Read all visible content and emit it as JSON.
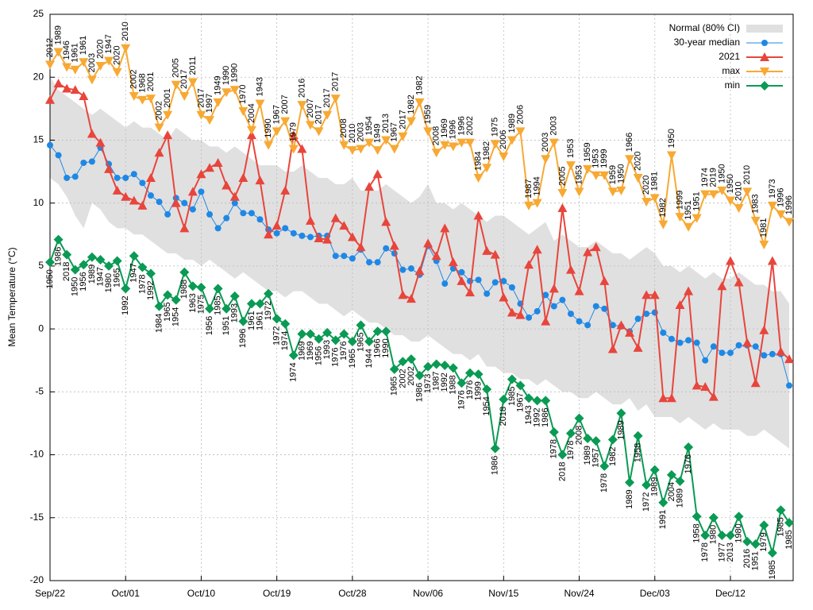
{
  "chart_data": {
    "type": "line",
    "ylabel": "Mean Temperature (°C)",
    "categories": [
      "Sep/22",
      null,
      null,
      null,
      null,
      null,
      null,
      null,
      null,
      "Oct/01",
      null,
      null,
      null,
      null,
      null,
      null,
      null,
      null,
      "Oct/10",
      null,
      null,
      null,
      null,
      null,
      null,
      null,
      null,
      "Oct/19",
      null,
      null,
      null,
      null,
      null,
      null,
      null,
      null,
      "Oct/28",
      null,
      null,
      null,
      null,
      null,
      null,
      null,
      null,
      "Nov/06",
      null,
      null,
      null,
      null,
      null,
      null,
      null,
      null,
      "Nov/15",
      null,
      null,
      null,
      null,
      null,
      null,
      null,
      null,
      "Nov/24",
      null,
      null,
      null,
      null,
      null,
      null,
      null,
      null,
      "Dec/03",
      null,
      null,
      null,
      null,
      null,
      null,
      null,
      null,
      "Dec/12",
      null,
      null,
      null,
      null,
      null,
      null,
      null
    ],
    "ylim": [
      -20,
      25
    ],
    "yticks": [
      -20,
      -15,
      -10,
      -5,
      0,
      5,
      10,
      15,
      20,
      25
    ],
    "grid": true,
    "legend": "upper right",
    "series": [
      {
        "name": "Normal (80% CI)",
        "color": "#e0e0e0",
        "kind": "band",
        "upper": [
          20,
          19,
          18.5,
          18,
          17.5,
          17,
          17.5,
          17,
          16.5,
          16,
          16.5,
          16,
          16,
          15.5,
          15,
          16,
          15.5,
          15,
          15,
          14.5,
          14.5,
          14,
          14.5,
          14,
          13.5,
          13,
          13,
          13,
          12.5,
          12.5,
          13,
          12.5,
          12,
          12,
          11.5,
          11.5,
          12,
          11,
          11,
          11,
          11.5,
          11,
          10.5,
          10,
          10.5,
          11.5,
          10,
          10,
          9.5,
          10,
          9.5,
          9,
          8.5,
          9,
          9,
          8.5,
          8,
          7.5,
          8,
          8.5,
          7,
          7.5,
          7,
          6.5,
          6.5,
          7,
          6.5,
          6,
          6,
          5.5,
          6,
          6.5,
          6,
          5,
          5,
          4.5,
          5,
          4.5,
          4,
          4.5,
          4,
          4,
          4.5,
          4,
          3.5,
          3.5,
          3,
          3,
          2
        ],
        "lower": [
          12,
          11.5,
          10.5,
          9,
          8,
          10,
          9.5,
          8.5,
          8,
          8,
          7.5,
          7.5,
          7,
          6.5,
          6,
          6,
          5.5,
          5.5,
          5,
          5.5,
          5,
          4.5,
          4,
          4.5,
          4,
          3.5,
          3,
          3,
          2.5,
          3,
          3,
          2.5,
          2,
          2,
          1.5,
          1,
          1.5,
          1,
          0.5,
          0.5,
          0,
          -0.5,
          -0.5,
          -1,
          -1,
          -0.5,
          -1,
          -1.5,
          -2,
          -2,
          -2.5,
          -2,
          -3,
          -3,
          -3.5,
          -3.5,
          -4,
          -4,
          -4.5,
          -4,
          -4.5,
          -5,
          -5,
          -5.5,
          -5.5,
          -5,
          -5.5,
          -6,
          -6,
          -5.5,
          -6.5,
          -6,
          -7,
          -7,
          -7,
          -7.5,
          -7,
          -7.5,
          -8,
          -7.5,
          -8,
          -8,
          -8,
          -8.5,
          -8.5,
          -8,
          -8.5,
          -9,
          -9.5
        ]
      },
      {
        "name": "30-year median",
        "color": "#1e88e5",
        "marker": "circle",
        "width": 1,
        "values": [
          14.6,
          13.8,
          12.0,
          12.1,
          13.2,
          13.3,
          14.4,
          13.1,
          12.0,
          12.0,
          12.3,
          11.6,
          10.6,
          10.1,
          9.1,
          10.4,
          10.0,
          9.5,
          10.9,
          9.1,
          8.0,
          8.8,
          10.0,
          9.2,
          9.2,
          8.7,
          7.9,
          7.6,
          8.0,
          7.6,
          7.4,
          7.3,
          7.4,
          7.4,
          5.8,
          5.8,
          5.6,
          6.3,
          5.3,
          5.3,
          6.4,
          6.0,
          4.7,
          4.8,
          4.3,
          6.6,
          5.4,
          3.6,
          4.8,
          4.5,
          3.8,
          3.9,
          2.8,
          3.7,
          3.8,
          3.3,
          2.0,
          0.9,
          1.4,
          2.7,
          1.8,
          2.3,
          1.2,
          0.6,
          0.3,
          1.8,
          1.6,
          0.3,
          0.2,
          -0.2,
          0.8,
          1.2,
          1.3,
          -0.3,
          -0.8,
          -1.1,
          -0.9,
          -1.1,
          -2.5,
          -1.4,
          -1.9,
          -1.9,
          -1.3,
          -1.3,
          -1.4,
          -2.1,
          -2.0,
          -2.0,
          -4.5
        ]
      },
      {
        "name": "2021",
        "color": "#e8453c",
        "marker": "triangle-up",
        "width": 2,
        "values": [
          18.2,
          19.5,
          19.1,
          19.0,
          18.5,
          15.5,
          14.8,
          12.7,
          11.0,
          10.5,
          10.2,
          9.8,
          12.0,
          14.0,
          15.4,
          10.0,
          8.0,
          10.9,
          12.3,
          12.8,
          13.2,
          11.4,
          10.5,
          12.0,
          15.4,
          11.8,
          7.5,
          8.2,
          11.0,
          15.4,
          14.3,
          8.6,
          7.2,
          7.1,
          8.8,
          8.2,
          7.3,
          6.5,
          11.3,
          12.3,
          8.5,
          6.6,
          2.7,
          2.4,
          4.6,
          6.8,
          5.8,
          8.0,
          5.3,
          3.8,
          2.9,
          9.0,
          6.2,
          5.9,
          2.5,
          1.3,
          1.1,
          5.1,
          6.3,
          0.6,
          3.2,
          9.6,
          4.7,
          3.0,
          6.1,
          6.5,
          3.8,
          -1.6,
          0.3,
          -0.3,
          -1.5,
          2.7,
          2.7,
          -5.5,
          -5.5,
          1.9,
          3.0,
          -4.5,
          -4.6,
          -5.4,
          3.4,
          5.4,
          3.7,
          -1.1,
          -4.3,
          -0.1,
          5.4,
          -1.8,
          -2.4
        ]
      },
      {
        "name": "max",
        "color": "#f7a933",
        "marker": "triangle-down",
        "width": 2,
        "label_side": "above",
        "values": [
          21.0,
          22.0,
          20.8,
          20.6,
          21.2,
          19.8,
          20.9,
          21.3,
          20.4,
          22.3,
          18.5,
          18.2,
          18.3,
          16.0,
          17.0,
          19.4,
          18.5,
          19.6,
          17.0,
          16.6,
          18.0,
          18.8,
          19.0,
          17.3,
          15.8,
          17.9,
          14.6,
          15.7,
          16.5,
          14.3,
          17.8,
          16.2,
          15.7,
          17.0,
          18.3,
          14.6,
          14.2,
          14.3,
          14.8,
          14.2,
          15.0,
          14.3,
          15.3,
          16.5,
          18.0,
          15.7,
          14.0,
          14.6,
          14.5,
          14.8,
          14.8,
          12.0,
          12.8,
          14.7,
          13.7,
          15.0,
          15.7,
          9.8,
          10.0,
          13.5,
          14.8,
          10.8,
          13.0,
          10.9,
          12.7,
          12.2,
          12.2,
          10.9,
          11.0,
          13.5,
          12.0,
          10.1,
          10.4,
          8.3,
          13.8,
          8.9,
          8.1,
          8.8,
          10.7,
          10.7,
          11.0,
          10.2,
          9.6,
          10.9,
          8.6,
          6.7,
          9.8,
          9.1,
          8.5
        ],
        "point_labels": [
          "2012",
          "1989",
          "1946",
          "1961",
          "1961",
          "2003",
          "2020",
          "1947",
          "2020",
          "2010",
          "2002",
          "1968",
          "2001",
          "2002",
          "2001",
          "2005",
          "2017",
          "2011",
          "2017",
          "1997",
          "1949",
          "1990",
          "1990",
          "1970",
          "2004",
          "1943",
          "1990",
          "1967",
          "2007",
          "1979",
          "2016",
          "2007",
          "2017",
          "2017",
          "2017",
          "2008",
          "2010",
          "2003",
          "1954",
          "1949",
          "2013",
          "1967",
          "2017",
          "1982",
          "1982",
          "1959",
          "2008",
          "1969",
          "1996",
          "1996",
          "2002",
          "1984",
          "1982",
          "1975",
          "2006",
          "1989",
          "2006",
          "1987",
          "1994",
          "2003",
          "2003",
          "2005",
          "1953",
          "1953",
          "1959",
          "1953",
          "1999",
          "1959",
          "1950",
          "1966",
          "2020",
          "2020",
          "1981",
          "1982",
          "1950",
          "1999",
          "1951",
          "1951",
          "1974",
          "2019",
          "1950",
          "1950",
          "2010",
          "2010",
          "1983",
          "1981",
          "1973",
          "1996",
          "1996"
        ]
      },
      {
        "name": "min",
        "color": "#0a9a54",
        "marker": "diamond",
        "width": 2,
        "label_side": "below",
        "values": [
          5.3,
          7.1,
          5.9,
          4.7,
          5.1,
          5.7,
          5.5,
          5.0,
          5.4,
          3.2,
          5.8,
          4.9,
          4.4,
          1.8,
          2.7,
          2.3,
          4.5,
          3.4,
          3.3,
          1.6,
          3.2,
          1.6,
          2.6,
          0.6,
          2.0,
          2.0,
          2.8,
          0.8,
          0.4,
          -2.1,
          -0.4,
          -0.4,
          -0.8,
          -0.3,
          -0.9,
          -0.4,
          -1.0,
          0.3,
          -1.0,
          -0.2,
          -0.2,
          -3.2,
          -2.6,
          -2.4,
          -3.7,
          -3.0,
          -2.8,
          -2.9,
          -3.1,
          -4.3,
          -3.5,
          -3.6,
          -4.8,
          -9.5,
          -5.6,
          -4.0,
          -4.5,
          -5.5,
          -5.7,
          -5.7,
          -8.2,
          -10.0,
          -8.3,
          -7.1,
          -8.7,
          -8.9,
          -10.9,
          -8.8,
          -6.7,
          -12.2,
          -8.5,
          -12.4,
          -11.2,
          -13.8,
          -11.6,
          -12.1,
          -9.4,
          -14.9,
          -16.4,
          -15.0,
          -16.4,
          -16.4,
          -14.9,
          -16.9,
          -17.1,
          -15.6,
          -17.8,
          -14.4,
          -15.4
        ],
        "point_labels": [
          "1950",
          "1986",
          "2018",
          "1950",
          "1956",
          "1989",
          "1947",
          "1980",
          "1965",
          "1992",
          "1947",
          "1978",
          "1992",
          "1984",
          "1965",
          "1954",
          "1988",
          "1963",
          "1975",
          "1956",
          "1985",
          "1951",
          "1993",
          "1996",
          "1961",
          "1961",
          "1972",
          "1972",
          "1974",
          "1974",
          "1969",
          "1969",
          "1956",
          "1993",
          "1976",
          "1976",
          "1965",
          "1965",
          "1944",
          "1966",
          "1990",
          "1965",
          "2002",
          "2002",
          "1986",
          "1973",
          "1987",
          "1992",
          "1988",
          "1976",
          "1976",
          "1999",
          "1954",
          "1986",
          "2018",
          "1985",
          "1967",
          "1943",
          "1992",
          "1986",
          "1978",
          "2018",
          "1978",
          "2008",
          "1989",
          "1957",
          "1978",
          "1982",
          "1989",
          "1989",
          "1958",
          "1972",
          "1989",
          "1991",
          "2004",
          "1989",
          "1976",
          "1958",
          "1978",
          "1980",
          "1977",
          "2013",
          "1980",
          "2016",
          "1951",
          "1979",
          "1985",
          "1985",
          "1985"
        ]
      }
    ]
  }
}
